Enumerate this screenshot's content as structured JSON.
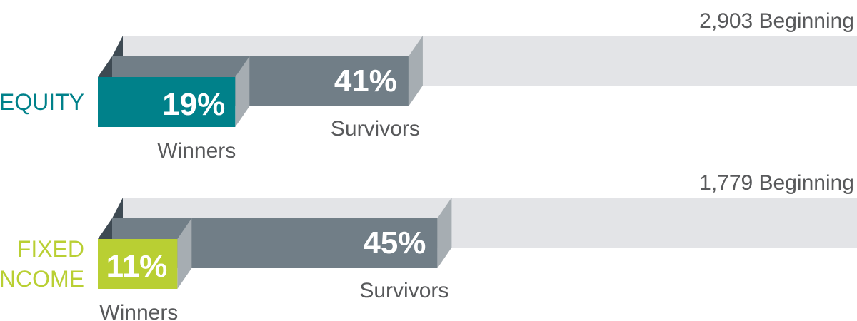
{
  "chart_data": {
    "type": "bar",
    "series_names": [
      "Beginning",
      "Survivors",
      "Winners"
    ],
    "groups": [
      {
        "name": "EQUITY",
        "name_lines": [
          "EQUITY"
        ],
        "beginning_label": "2,903 Beginning",
        "beginning_count": 2903,
        "survivors_pct": 41,
        "survivors_label": "41%",
        "survivors_caption": "Survivors",
        "winners_pct": 19,
        "winners_label": "19%",
        "winners_caption": "Winners",
        "color": "#00818a"
      },
      {
        "name": "FIXED INCOME",
        "name_lines": [
          "FIXED",
          "INCOME"
        ],
        "beginning_label": "1,779 Beginning",
        "beginning_count": 1779,
        "survivors_pct": 45,
        "survivors_label": "45%",
        "survivors_caption": "Survivors",
        "winners_pct": 11,
        "winners_label": "11%",
        "winners_caption": "Winners",
        "color": "#b9cf33"
      }
    ],
    "colors": {
      "beginning": "#e3e4e7",
      "survivors": "#717e87",
      "shadow": "#a6adb2",
      "dark_edge": "#3e4a53",
      "label_text": "#58595b",
      "bar_text": "#ffffff"
    }
  }
}
